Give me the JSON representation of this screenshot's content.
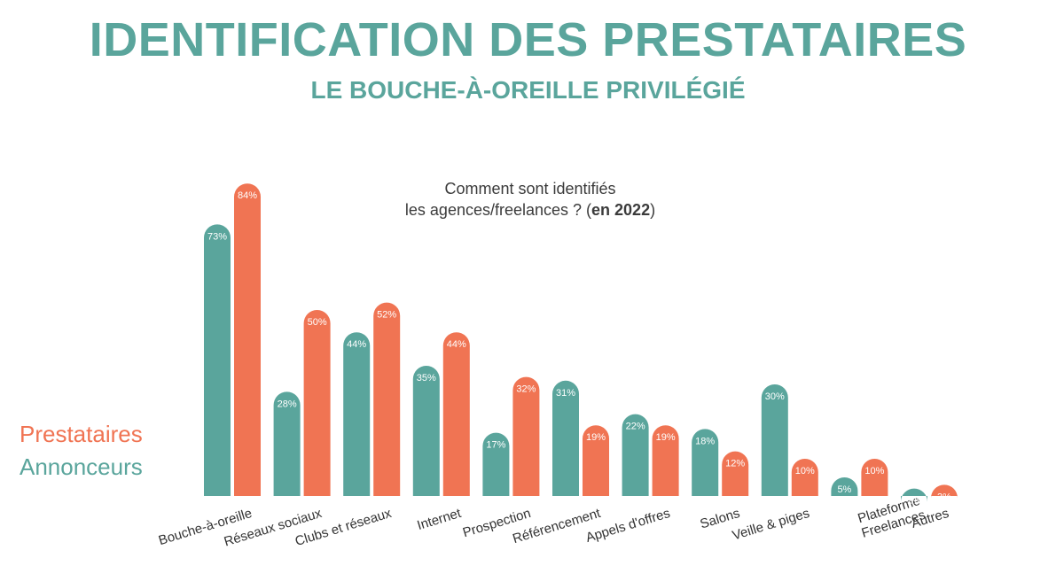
{
  "title": "IDENTIFICATION DES PRESTATAIRES",
  "subtitle": "LE BOUCHE-À-OREILLE PRIVILÉGIÉ",
  "question": {
    "line1": "Comment sont identifiés",
    "line2_prefix": "les agences/freelances ? (",
    "line2_bold": "en 2022",
    "line2_suffix": ")"
  },
  "colors": {
    "prestataires": "#f07453",
    "annonceurs": "#5aa59c",
    "title": "#5aa59c"
  },
  "chart_data": {
    "type": "bar",
    "categories": [
      "Bouche-à-oreille",
      "Réseaux sociaux",
      "Clubs et réseaux",
      "Internet",
      "Prospection",
      "Référencement",
      "Appels d'offres",
      "Salons",
      "Veille & piges",
      "Plateforme Freelances",
      "Autres"
    ],
    "category_label_lines": [
      [
        "Bouche-à-oreille"
      ],
      [
        "Réseaux sociaux"
      ],
      [
        "Clubs et réseaux"
      ],
      [
        "Internet"
      ],
      [
        "Prospection"
      ],
      [
        "Référencement"
      ],
      [
        "Appels d'offres"
      ],
      [
        "Salons"
      ],
      [
        "Veille & piges"
      ],
      [
        "Plateforme",
        "Freelances"
      ],
      [
        "Autres"
      ]
    ],
    "series": [
      {
        "name": "Annonceurs",
        "color": "#5aa59c",
        "values": [
          73,
          28,
          44,
          35,
          17,
          31,
          22,
          18,
          30,
          5,
          2
        ]
      },
      {
        "name": "Prestataires",
        "color": "#f07453",
        "values": [
          84,
          50,
          52,
          44,
          32,
          19,
          19,
          12,
          10,
          10,
          3
        ]
      }
    ],
    "value_suffix": "%",
    "legend": [
      "Prestataires",
      "Annonceurs"
    ],
    "legend_position": "left",
    "ylim": [
      0,
      100
    ],
    "grid": false
  }
}
